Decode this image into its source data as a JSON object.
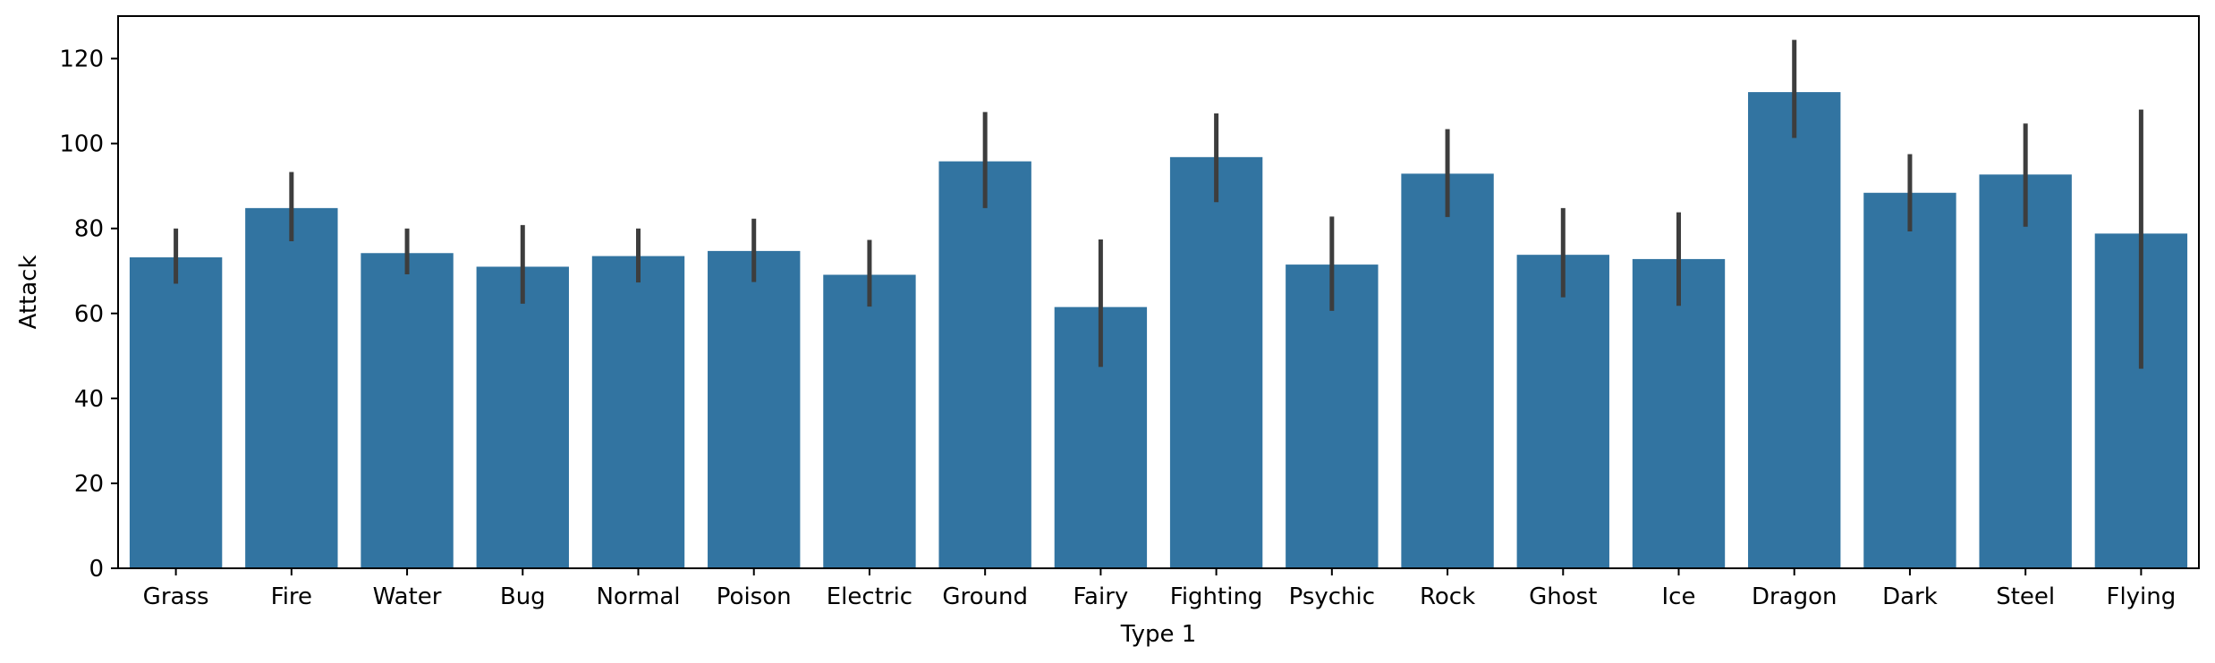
{
  "chart_data": {
    "type": "bar",
    "title": "",
    "xlabel": "Type 1",
    "ylabel": "Attack",
    "ylim": [
      0,
      130
    ],
    "yticks": [
      0,
      20,
      40,
      60,
      80,
      100,
      120
    ],
    "grid": false,
    "bar_color": "#3274a1",
    "errorbar_color": "#3d3d3d",
    "categories": [
      "Grass",
      "Fire",
      "Water",
      "Bug",
      "Normal",
      "Poison",
      "Electric",
      "Ground",
      "Fairy",
      "Fighting",
      "Psychic",
      "Rock",
      "Ghost",
      "Ice",
      "Dragon",
      "Dark",
      "Steel",
      "Flying"
    ],
    "values": [
      73.2,
      84.8,
      74.2,
      71.0,
      73.5,
      74.7,
      69.1,
      95.8,
      61.5,
      96.8,
      71.5,
      92.9,
      73.8,
      72.8,
      112.1,
      88.4,
      92.7,
      78.8
    ],
    "ci_low": [
      67.0,
      77.0,
      69.2,
      62.3,
      67.3,
      67.4,
      61.6,
      84.8,
      47.4,
      86.2,
      60.6,
      82.7,
      63.8,
      61.8,
      101.3,
      79.3,
      80.4,
      47.0
    ],
    "ci_high": [
      80.0,
      93.3,
      80.0,
      80.8,
      80.0,
      82.3,
      77.3,
      107.4,
      77.4,
      107.1,
      82.8,
      103.4,
      84.8,
      83.8,
      124.4,
      97.5,
      104.7,
      108.0
    ]
  }
}
